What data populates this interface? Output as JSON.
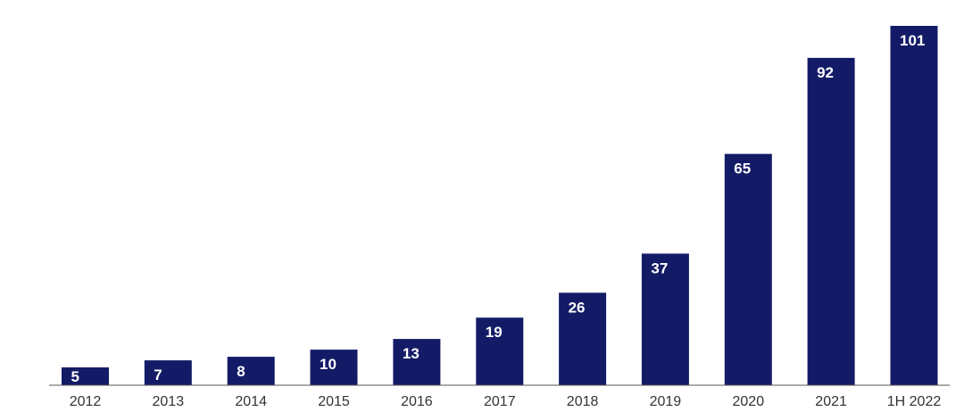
{
  "chart_data": {
    "type": "bar",
    "categories": [
      "2012",
      "2013",
      "2014",
      "2015",
      "2016",
      "2017",
      "2018",
      "2019",
      "2020",
      "2021",
      "1H 2022"
    ],
    "values": [
      5,
      7,
      8,
      10,
      13,
      19,
      26,
      37,
      65,
      92,
      101
    ],
    "data_labels": [
      "5",
      "7",
      "8",
      "10",
      "13",
      "19",
      "26",
      "37",
      "65",
      "92",
      "101"
    ],
    "title": "",
    "xlabel": "",
    "ylabel": "",
    "ylim": [
      0,
      101
    ],
    "grid": false,
    "legend": "none",
    "colors": {
      "bar": "#141b66",
      "bar_label": "#ffffff",
      "axis": "#555555",
      "tick_label": "#333333"
    }
  }
}
